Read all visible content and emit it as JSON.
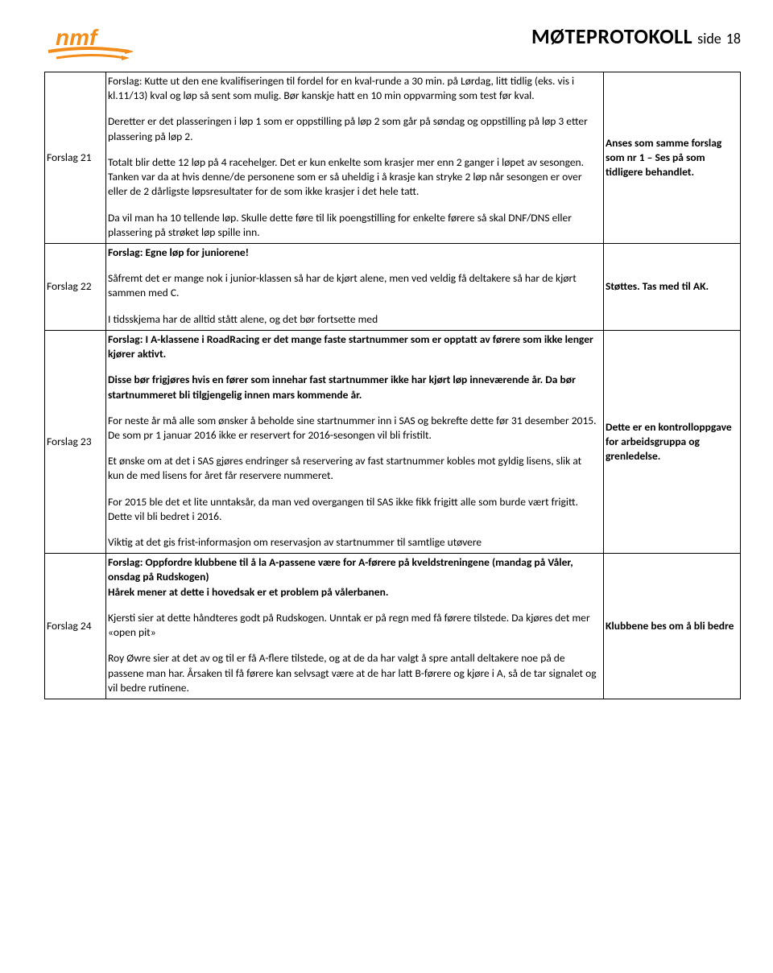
{
  "header": {
    "doc_title": "MØTEPROTOKOLL",
    "side_label": "side",
    "page_number": "18"
  },
  "logo": {
    "text": "nmf",
    "color_main": "#f28c1a",
    "color_accent": "#f28c1a"
  },
  "rows": [
    {
      "id": "Forslag 21",
      "paragraphs": [
        {
          "text": "Forslag: Kutte ut den ene kvalifiseringen til fordel for en kval-runde a 30 min. på Lørdag, litt tidlig (eks. vis i kl.11/13) kval og løp så sent som mulig. Bør kanskje hatt en 10 min oppvarming som test før kval."
        },
        {
          "text": "Deretter er det plasseringen i løp 1 som er oppstilling på løp 2 som går på søndag og oppstilling på løp 3 etter plassering på løp 2."
        },
        {
          "text": "Totalt blir dette 12 løp på 4 racehelger. Det er kun enkelte som krasjer mer enn 2 ganger i løpet av sesongen. Tanken var da at hvis denne/de personene som er så uheldig i å krasje kan stryke 2 løp når sesongen er over eller de 2 dårligste løpsresultater for de som ikke krasjer i det hele tatt."
        },
        {
          "text": "Da vil man ha 10 tellende løp. Skulle dette føre til lik poengstilling for enkelte førere så skal DNF/DNS eller plassering på strøket løp spille inn."
        }
      ],
      "status": "Anses som samme forslag som nr 1 – Ses på som tidligere behandlet."
    },
    {
      "id": "Forslag 22",
      "paragraphs": [
        {
          "text": "Forslag: Egne løp for juniorene!",
          "bold": true
        },
        {
          "text": "Såfremt det er mange nok i junior-klassen så har de kjørt alene, men ved veldig få deltakere så har de kjørt sammen med C."
        },
        {
          "text": "I tidsskjema har de alltid stått alene, og det bør fortsette med"
        }
      ],
      "status": "Støttes. Tas med til AK."
    },
    {
      "id": "Forslag 23",
      "paragraphs": [
        {
          "text": "Forslag: I A-klassene i RoadRacing er det mange faste startnummer som er opptatt av førere som ikke lenger kjører aktivt.",
          "bold": true
        },
        {
          "text": "Disse bør frigjøres hvis en fører som innehar fast startnummer ikke har kjørt løp inneværende år. Da bør startnummeret bli tilgjengelig innen mars kommende år.",
          "bold": true
        },
        {
          "text": "For neste år må alle som ønsker å beholde sine startnummer inn i SAS og bekrefte dette før 31 desember 2015. De som pr 1 januar 2016 ikke er reservert for 2016-sesongen vil bli fristilt."
        },
        {
          "text": "Et ønske om at det i SAS gjøres endringer så reservering av fast startnummer kobles mot gyldig lisens, slik at kun de med lisens for året får reservere nummeret."
        },
        {
          "text": "For 2015 ble det et lite unntaksår, da man ved overgangen til SAS ikke fikk frigitt alle som burde vært frigitt. Dette vil bli bedret i 2016."
        },
        {
          "text": "Viktig at det gis frist-informasjon om reservasjon av startnummer til samtlige utøvere"
        }
      ],
      "status": "Dette er en kontrolloppgave for arbeidsgruppa og grenledelse."
    },
    {
      "id": "Forslag 24",
      "paragraphs": [
        {
          "text": "Forslag: Oppfordre klubbene til å la A-passene være for A-førere på kveldstreningene (mandag på Våler, onsdag på Rudskogen)\nHårek mener at dette i hovedsak er et problem på vålerbanen.",
          "bold": true
        },
        {
          "text": "Kjersti sier at dette håndteres godt på Rudskogen. Unntak er på regn med få førere tilstede. Da kjøres det mer «open pit»"
        },
        {
          "text": "Roy Øwre sier at det av og til er få A-flere tilstede, og at de da har valgt å spre antall deltakere noe på de passene man har. Årsaken til få førere kan selvsagt være at de har latt B-førere og kjøre i A, så de tar signalet og vil bedre rutinene."
        }
      ],
      "status": "Klubbene bes om å bli bedre"
    }
  ]
}
